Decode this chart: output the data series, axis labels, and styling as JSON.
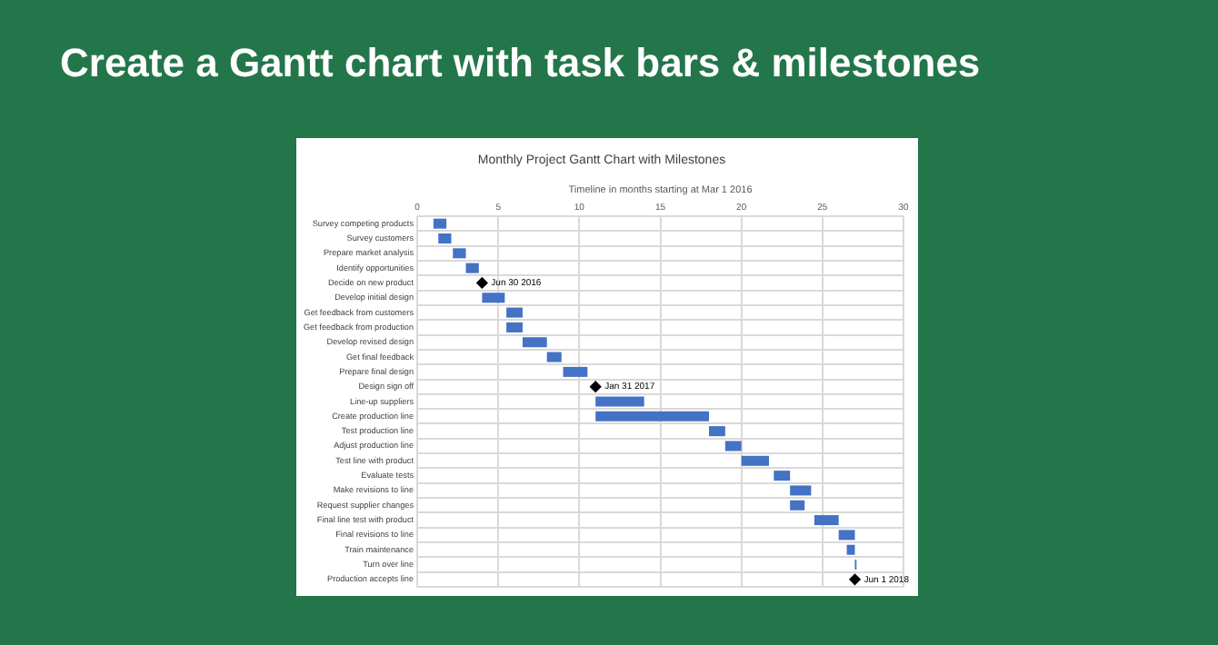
{
  "chart_data": {
    "type": "bar",
    "orientation": "horizontal",
    "title": "Create a Gantt chart with task bars & milestones",
    "subtitle": "Monthly Project Gantt Chart with Milestones",
    "xlabel": "Timeline in months starting at Mar 1 2016",
    "categories": [
      "Survey competing products",
      "Survey customers",
      "Prepare market analysis",
      "Identify opportunities",
      "Decide on new product",
      "Develop initial design",
      "Get feedback from customers",
      "Get feedback from production",
      "Develop revised design",
      "Get final feedback",
      "Prepare final design",
      "Design sign off",
      "Line-up suppliers",
      "Create production line",
      "Test production line",
      "Adjust production line",
      "Test line with product",
      "Evaluate tests",
      "Make revisions to line",
      "Request supplier changes",
      "Final line test with product",
      "Final revisions to line",
      "Train maintenance",
      "Turn over line",
      "Production accepts line"
    ],
    "xlim": [
      0,
      30
    ],
    "xticks": [
      0,
      5,
      10,
      15,
      20,
      25,
      30
    ],
    "grid": true,
    "legend": false,
    "series": [
      {
        "color": "#4472c4",
        "base": [
          1,
          1.3,
          2.2,
          3,
          null,
          4,
          5.5,
          5.5,
          6.5,
          8,
          9,
          null,
          11,
          11,
          18,
          19,
          20,
          22,
          23,
          23,
          24.5,
          26,
          26.5,
          27,
          null
        ],
        "values": [
          0.8,
          0.8,
          0.8,
          0.8,
          null,
          1.4,
          1,
          1,
          1.5,
          0.9,
          1.5,
          null,
          3,
          7,
          1,
          1,
          1.7,
          1,
          1.3,
          0.9,
          1.5,
          1,
          0.5,
          0.1,
          null
        ]
      },
      {
        "type": "scatter",
        "color": "#000000",
        "marker": "diamond",
        "values": [
          null,
          null,
          null,
          null,
          4,
          null,
          null,
          null,
          null,
          null,
          null,
          11,
          null,
          null,
          null,
          null,
          null,
          null,
          null,
          null,
          null,
          null,
          null,
          null,
          27
        ],
        "value_labels": [
          null,
          null,
          null,
          null,
          "Jun 30 2016",
          null,
          null,
          null,
          null,
          null,
          null,
          "Jan 31 2017",
          null,
          null,
          null,
          null,
          null,
          null,
          null,
          null,
          null,
          null,
          null,
          null,
          "Jun 1 2018"
        ]
      }
    ]
  }
}
